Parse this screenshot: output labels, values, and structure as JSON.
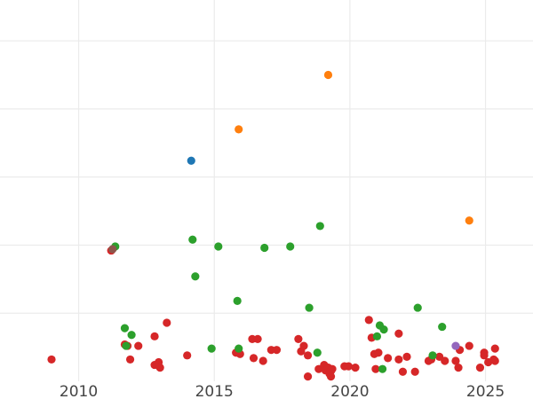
{
  "chart_data": {
    "type": "scatter",
    "title": "",
    "xlabel": "",
    "ylabel": "",
    "x_ticks": [
      2010,
      2015,
      2020,
      2025
    ],
    "xlim": [
      2007.1,
      2026.75
    ],
    "ylim": [
      0,
      28
    ],
    "y_gridlines": [
      5,
      10,
      15,
      20,
      25
    ],
    "grid": true,
    "legend": "none",
    "series": [
      {
        "color": "#d62728",
        "points": [
          [
            2009.0,
            1.6
          ],
          [
            2011.2,
            9.6
          ],
          [
            2011.7,
            2.7
          ],
          [
            2011.8,
            2.6
          ],
          [
            2011.9,
            1.6
          ],
          [
            2012.2,
            2.6
          ],
          [
            2012.8,
            3.3
          ],
          [
            2012.8,
            1.2
          ],
          [
            2012.95,
            1.4
          ],
          [
            2013.0,
            1.0
          ],
          [
            2013.25,
            4.3
          ],
          [
            2014.0,
            1.9
          ],
          [
            2015.8,
            2.1
          ],
          [
            2015.95,
            2.0
          ],
          [
            2016.4,
            3.1
          ],
          [
            2016.45,
            1.7
          ],
          [
            2016.6,
            3.1
          ],
          [
            2016.8,
            1.5
          ],
          [
            2017.1,
            2.3
          ],
          [
            2017.3,
            2.3
          ],
          [
            2018.1,
            3.1
          ],
          [
            2018.2,
            2.2
          ],
          [
            2018.3,
            2.6
          ],
          [
            2018.45,
            1.9
          ],
          [
            2018.45,
            0.35
          ],
          [
            2018.85,
            0.9
          ],
          [
            2019.05,
            1.2
          ],
          [
            2019.1,
            0.8
          ],
          [
            2019.2,
            1.0
          ],
          [
            2019.25,
            0.55
          ],
          [
            2019.3,
            0.75
          ],
          [
            2019.35,
            0.9
          ],
          [
            2019.3,
            0.35
          ],
          [
            2019.8,
            1.1
          ],
          [
            2019.95,
            1.1
          ],
          [
            2020.2,
            1.0
          ],
          [
            2020.7,
            4.5
          ],
          [
            2020.8,
            3.2
          ],
          [
            2020.9,
            2.0
          ],
          [
            2020.95,
            0.9
          ],
          [
            2021.05,
            2.1
          ],
          [
            2021.4,
            1.7
          ],
          [
            2021.8,
            3.5
          ],
          [
            2021.8,
            1.6
          ],
          [
            2021.95,
            0.7
          ],
          [
            2022.1,
            1.8
          ],
          [
            2022.4,
            0.7
          ],
          [
            2022.9,
            1.5
          ],
          [
            2023.0,
            1.6
          ],
          [
            2023.3,
            1.8
          ],
          [
            2023.5,
            1.5
          ],
          [
            2023.9,
            1.5
          ],
          [
            2024.0,
            1.0
          ],
          [
            2024.05,
            2.3
          ],
          [
            2024.4,
            2.6
          ],
          [
            2024.8,
            1.0
          ],
          [
            2024.95,
            2.1
          ],
          [
            2024.95,
            1.9
          ],
          [
            2025.1,
            1.4
          ],
          [
            2025.3,
            1.6
          ],
          [
            2025.35,
            1.5
          ],
          [
            2025.35,
            2.4
          ]
        ]
      },
      {
        "color": "#2ca02c",
        "points": [
          [
            2011.35,
            9.9
          ],
          [
            2011.7,
            3.9
          ],
          [
            2011.75,
            2.6
          ],
          [
            2011.95,
            3.4
          ],
          [
            2014.2,
            10.4
          ],
          [
            2014.3,
            7.7
          ],
          [
            2014.9,
            2.4
          ],
          [
            2015.15,
            9.9
          ],
          [
            2015.85,
            5.9
          ],
          [
            2015.9,
            2.4
          ],
          [
            2016.85,
            9.8
          ],
          [
            2017.8,
            9.9
          ],
          [
            2018.5,
            5.4
          ],
          [
            2018.8,
            2.1
          ],
          [
            2018.9,
            11.4
          ],
          [
            2021.0,
            3.3
          ],
          [
            2021.1,
            4.1
          ],
          [
            2021.2,
            0.9
          ],
          [
            2021.25,
            3.8
          ],
          [
            2022.5,
            5.4
          ],
          [
            2023.05,
            1.9
          ],
          [
            2023.4,
            4.0
          ]
        ]
      },
      {
        "color": "#ff7f0e",
        "points": [
          [
            2015.9,
            18.5
          ],
          [
            2019.2,
            22.5
          ],
          [
            2024.4,
            11.8
          ]
        ]
      },
      {
        "color": "#1f77b4",
        "points": [
          [
            2014.15,
            16.2
          ]
        ]
      },
      {
        "color": "#8c564b",
        "points": [
          [
            2011.25,
            9.7
          ]
        ]
      },
      {
        "color": "#9467bd",
        "points": [
          [
            2023.9,
            2.6
          ]
        ]
      }
    ]
  }
}
